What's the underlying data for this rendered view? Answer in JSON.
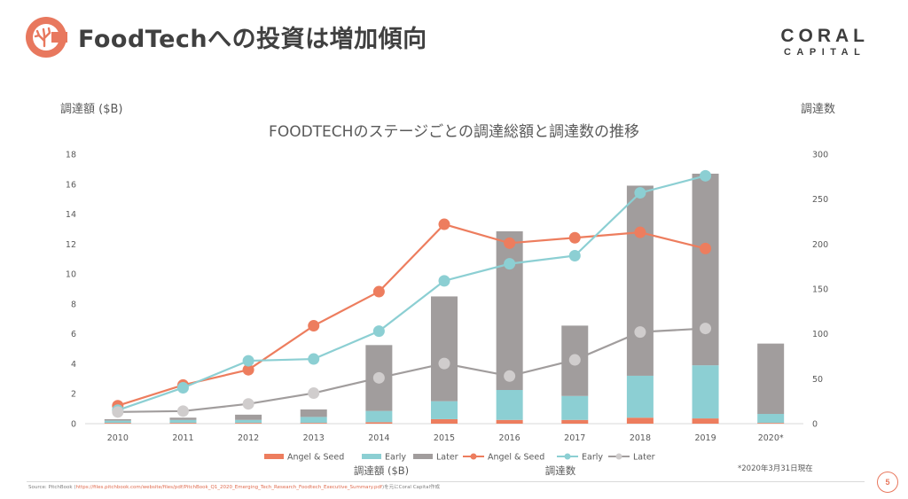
{
  "slide": {
    "title": "FoodTechへの投資は増加傾向",
    "brand_line1": "CORAL",
    "brand_line2": "CAPITAL",
    "page_number": "5",
    "footnote": "*2020年3月31日現在",
    "source_prefix": "Source: PitchBook (",
    "source_url": "https://files.pitchbook.com/website/files/pdf/PitchBook_Q1_2020_Emerging_Tech_Research_Foodtech_Executive_Summary.pdf",
    "source_suffix": ")を元にCoral Capital作成",
    "accent_color": "#e8785e"
  },
  "chart_data": {
    "type": "bar",
    "title": "FOODTECHのステージごとの調達総額と調達数の推移",
    "ylabel": "調達額 ($B)",
    "y2label": "調達数",
    "categories": [
      "2010",
      "2011",
      "2012",
      "2013",
      "2014",
      "2015",
      "2016",
      "2017",
      "2018",
      "2019",
      "2020*"
    ],
    "ylim": [
      0,
      18
    ],
    "yticks": [
      0,
      2,
      4,
      6,
      8,
      10,
      12,
      14,
      16,
      18
    ],
    "y2lim": [
      0,
      300
    ],
    "y2ticks": [
      0,
      50,
      100,
      150,
      200,
      250,
      300
    ],
    "stacked": true,
    "bar_series": [
      {
        "name": "Angel & Seed",
        "color": "#ed7d5e",
        "values": [
          0.05,
          0.05,
          0.05,
          0.05,
          0.1,
          0.3,
          0.25,
          0.25,
          0.4,
          0.35,
          0.05
        ]
      },
      {
        "name": "Early",
        "color": "#8ccfd3",
        "values": [
          0.15,
          0.2,
          0.2,
          0.4,
          0.75,
          1.2,
          2.0,
          1.6,
          2.8,
          3.55,
          0.6
        ]
      },
      {
        "name": "Later",
        "color": "#a19d9d",
        "values": [
          0.1,
          0.15,
          0.35,
          0.5,
          4.4,
          7.0,
          10.6,
          4.7,
          12.7,
          12.8,
          4.7
        ]
      }
    ],
    "line_series": [
      {
        "name": "Angel & Seed",
        "color": "#ed7d5e",
        "values": [
          20,
          43,
          60,
          109,
          147,
          222,
          201,
          207,
          213,
          195,
          null
        ]
      },
      {
        "name": "Early",
        "color": "#8ccfd3",
        "values": [
          15,
          40,
          70,
          72,
          103,
          159,
          178,
          187,
          257,
          276,
          null
        ]
      },
      {
        "name": "Later",
        "color": "#a19d9d",
        "values": [
          13,
          14,
          22,
          34,
          51,
          67,
          53,
          71,
          102,
          106,
          null
        ]
      }
    ],
    "legend": [
      "Angel & Seed",
      "Early",
      "Later",
      "Angel & Seed",
      "Early",
      "Later"
    ],
    "legend_group1": "調達額 ($B)",
    "legend_group2": "調達数",
    "grid": false,
    "legend_position": "bottom"
  }
}
